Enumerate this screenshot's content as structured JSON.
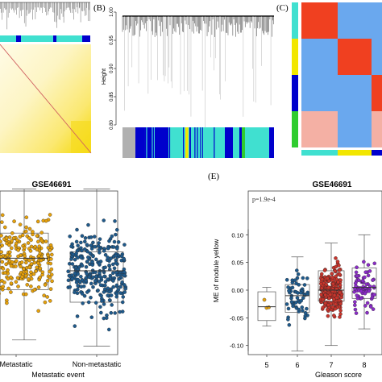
{
  "panels": {
    "b": {
      "label": "(B)",
      "ylabel": "Height"
    },
    "c": {
      "label": "(C)"
    },
    "d": {
      "title": "GSE46691"
    },
    "e": {
      "label": "(E)",
      "title": "GSE46691"
    }
  },
  "colors": {
    "yellow": "#f2e600",
    "cyan": "#40e0d0",
    "blue": "#0000cc",
    "grey": "#b0b0b0",
    "green": "#2fcc2f",
    "orange": "#e6a10c",
    "steelblue": "#1f5a8c",
    "red": "#c8352c",
    "purple": "#8b2cc8",
    "heat_red": "#f04020",
    "heat_blue": "#6aa8ee",
    "heat_pale": "#f4b0a4"
  },
  "chart_data": [
    {
      "type": "heatmap",
      "panel": "A",
      "description_visible": "TOM heatmap with module color bar",
      "module_bar": [
        "cyan",
        "blue",
        "cyan",
        "blue",
        "cyan",
        "blue"
      ]
    },
    {
      "type": "line",
      "panel": "B",
      "label": "(B)",
      "ylabel": "Height",
      "ylim": [
        0.79,
        1.0
      ],
      "yticks": [
        "0.80",
        "0.85",
        "0.90",
        "0.95",
        "1.00"
      ],
      "module_bar": [
        "grey",
        "blue",
        "cyan",
        "yellow",
        "cyan",
        "blue",
        "cyan",
        "blue",
        "green",
        "cyan",
        "blue"
      ]
    },
    {
      "type": "heatmap",
      "panel": "C",
      "label": "(C)",
      "row_modules": [
        "cyan",
        "yellow",
        "blue",
        "green"
      ],
      "col_modules": [
        "cyan",
        "yellow",
        "blue",
        "green"
      ],
      "cells": [
        [
          "heat_red",
          "heat_blue",
          "heat_blue",
          "heat_red"
        ],
        [
          "heat_blue",
          "heat_red",
          "heat_blue",
          "heat_blue"
        ],
        [
          "heat_blue",
          "heat_blue",
          "heat_red",
          "heat_blue"
        ],
        [
          "heat_pale",
          "heat_blue",
          "heat_pale",
          "heat_red"
        ]
      ]
    },
    {
      "type": "scatter",
      "panel": "D",
      "title": "GSE46691",
      "xlabel": "Metastatic event",
      "categories": [
        "Metastatic",
        "Non-metastatic"
      ],
      "series": [
        {
          "category": "Metastatic",
          "color": "orange",
          "median": 0.02,
          "q1": -0.03,
          "q3": 0.06,
          "min": -0.11,
          "max": 0.13
        },
        {
          "category": "Non-metastatic",
          "color": "steelblue",
          "median": 0.0,
          "q1": -0.05,
          "q3": 0.03,
          "min": -0.12,
          "max": 0.13
        }
      ]
    },
    {
      "type": "scatter",
      "panel": "E",
      "label": "(E)",
      "title": "GSE46691",
      "annotation": "p=1.9e-4",
      "ylabel": "ME of module yellow",
      "xlabel": "Gleason score",
      "ylim": [
        -0.14,
        0.12
      ],
      "yticks": [
        "0.10",
        "0.05",
        "0.00",
        "-0.05",
        "-0.10"
      ],
      "categories": [
        "5",
        "6",
        "7",
        "8"
      ],
      "series": [
        {
          "category": "5",
          "color": "orange",
          "median": -0.03,
          "q1": -0.055,
          "q3": -0.003,
          "min": -0.065,
          "max": 0.005
        },
        {
          "category": "6",
          "color": "steelblue",
          "median": -0.01,
          "q1": -0.04,
          "q3": 0.01,
          "min": -0.11,
          "max": 0.06
        },
        {
          "category": "7",
          "color": "red",
          "median": 0.0,
          "q1": -0.02,
          "q3": 0.035,
          "min": -0.1,
          "max": 0.085
        },
        {
          "category": "8",
          "color": "purple",
          "median": 0.005,
          "q1": -0.015,
          "q3": 0.04,
          "min": -0.07,
          "max": 0.1
        }
      ]
    }
  ]
}
